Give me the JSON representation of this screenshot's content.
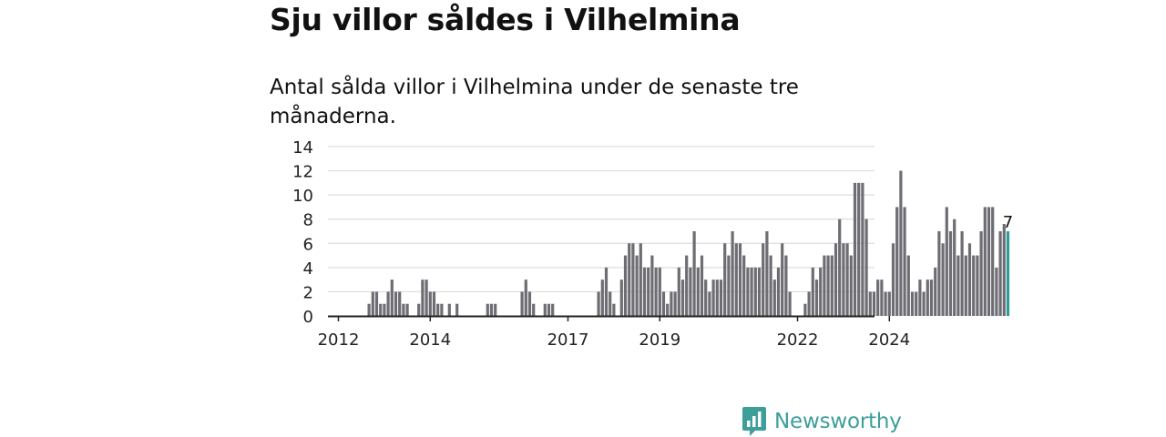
{
  "title": "Sju villor såldes i Vilhelmina",
  "subtitle": "Antal sålda villor i Vilhelmina under de senaste tre månaderna.",
  "brand": {
    "name": "Newsworthy",
    "icon": "bar-chart-speech-bubble-icon"
  },
  "colors": {
    "bar": "#6e6d73",
    "highlight": "#2a9d98",
    "grid": "#dddddd",
    "axis": "#222222",
    "brand": "#3d9e9a"
  },
  "chart_data": {
    "type": "bar",
    "title": "",
    "xlabel": "",
    "ylabel": "",
    "ylim": [
      0,
      14
    ],
    "yticks": [
      0,
      2,
      4,
      6,
      8,
      10,
      12,
      14
    ],
    "xticks": [
      "2012",
      "2014",
      "2017",
      "2019",
      "2022",
      "2024"
    ],
    "grid": true,
    "legend": "none",
    "highlight_label": "7",
    "start": "2012-01",
    "values": [
      0,
      0,
      0,
      0,
      0,
      0,
      0,
      0,
      1,
      2,
      2,
      1,
      1,
      2,
      3,
      2,
      2,
      1,
      1,
      0,
      0,
      1,
      3,
      3,
      2,
      2,
      1,
      1,
      0,
      1,
      0,
      1,
      0,
      0,
      0,
      0,
      0,
      0,
      0,
      1,
      1,
      1,
      0,
      0,
      0,
      0,
      0,
      0,
      2,
      3,
      2,
      1,
      0,
      0,
      1,
      1,
      1,
      0,
      0,
      0,
      0,
      0,
      0,
      0,
      0,
      0,
      0,
      0,
      2,
      3,
      4,
      2,
      1,
      0,
      3,
      5,
      6,
      6,
      5,
      6,
      4,
      4,
      5,
      4,
      4,
      2,
      1,
      2,
      2,
      4,
      3,
      5,
      4,
      7,
      4,
      5,
      3,
      2,
      3,
      3,
      3,
      6,
      5,
      7,
      6,
      6,
      5,
      4,
      4,
      4,
      4,
      6,
      7,
      5,
      3,
      4,
      6,
      5,
      2,
      0,
      0,
      0,
      1,
      2,
      4,
      3,
      4,
      5,
      5,
      5,
      6,
      8,
      6,
      6,
      5,
      11,
      11,
      11,
      8,
      2,
      2,
      3,
      3,
      2,
      2,
      6,
      9,
      12,
      9,
      5,
      2,
      2,
      3,
      2,
      3,
      3,
      4,
      7,
      6,
      9,
      7,
      8,
      5,
      7,
      5,
      6,
      5,
      5,
      7,
      9,
      9,
      9,
      4,
      7,
      7.6,
      7
    ]
  }
}
